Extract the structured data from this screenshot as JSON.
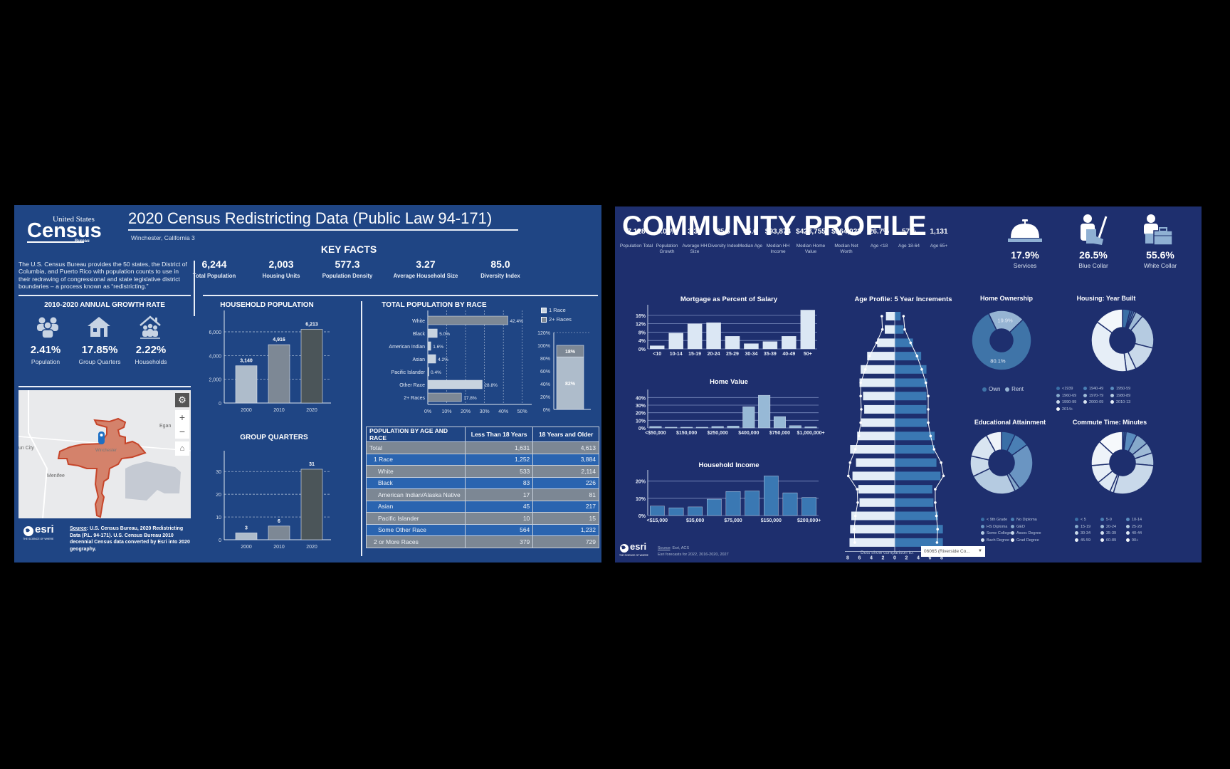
{
  "left": {
    "logo": {
      "line1": "United States",
      "line2": "Census",
      "line3": "Bureau"
    },
    "title": "2020 Census Redistricting Data (Public Law 94-171)",
    "subtitle": "Winchester, California 3",
    "intro": "The U.S. Census Bureau provides the 50 states, the District of Columbia, and Puerto Rico with population counts to use in their redrawing of congressional and state legislative district boundaries – a process known as “redistricting.”",
    "growth": {
      "title": "2010-2020 ANNUAL GROWTH RATE",
      "items": [
        {
          "icon": "people-icon",
          "value": "2.41%",
          "label": "Population"
        },
        {
          "icon": "house-icon",
          "value": "17.85%",
          "label": "Group Quarters"
        },
        {
          "icon": "household-icon",
          "value": "2.22%",
          "label": "Households"
        }
      ]
    },
    "map": {
      "places": [
        "Egan",
        "un City",
        "Menifee",
        "Winchester"
      ],
      "zoom_in": "+",
      "zoom_out": "−"
    },
    "source": {
      "label": "Source",
      "text": ": U.S. Census Bureau, 2020 Redistricting Data (P.L. 94-171). U.S. Census Bureau 2010 decennial Census data converted by Esri into 2020 geography."
    },
    "esri": {
      "name": "esri",
      "tagline": "THE SCIENCE OF WHERE"
    },
    "key_facts": {
      "title": "KEY FACTS",
      "items": [
        {
          "value": "6,244",
          "label": "Total Population"
        },
        {
          "value": "2,003",
          "label": "Housing Units"
        },
        {
          "value": "577.3",
          "label": "Population Density"
        },
        {
          "value": "3.27",
          "label": "Average Household Size"
        },
        {
          "value": "85.0",
          "label": "Diversity Index"
        }
      ]
    },
    "household_population": {
      "title": "HOUSEHOLD POPULATION"
    },
    "group_quarters": {
      "title": "GROUP QUARTERS"
    },
    "race": {
      "title": "TOTAL POPULATION BY RACE",
      "legend": [
        "1 Race",
        "2+ Races"
      ]
    },
    "table": {
      "headers": [
        "POPULATION BY AGE AND RACE",
        "Less Than 18 Years",
        "18 Years and Older"
      ],
      "rows": [
        {
          "label": "Total",
          "a": "1,631",
          "b": "4,613",
          "indent": 0,
          "style": "gray"
        },
        {
          "label": "1 Race",
          "a": "1,252",
          "b": "3,884",
          "indent": 1,
          "style": "blue"
        },
        {
          "label": "White",
          "a": "533",
          "b": "2,114",
          "indent": 2,
          "style": "gray"
        },
        {
          "label": "Black",
          "a": "83",
          "b": "226",
          "indent": 2,
          "style": "blue"
        },
        {
          "label": "American Indian/Alaska Native",
          "a": "17",
          "b": "81",
          "indent": 2,
          "style": "gray"
        },
        {
          "label": "Asian",
          "a": "45",
          "b": "217",
          "indent": 2,
          "style": "blue"
        },
        {
          "label": "Pacific Islander",
          "a": "10",
          "b": "15",
          "indent": 2,
          "style": "gray"
        },
        {
          "label": "Some Other Race",
          "a": "564",
          "b": "1,232",
          "indent": 2,
          "style": "blue"
        },
        {
          "label": "2 or More Races",
          "a": "379",
          "b": "729",
          "indent": 1,
          "style": "gray"
        }
      ]
    }
  },
  "right": {
    "title": "COMMUNITY PROFILE",
    "stats": [
      {
        "value": "7,128",
        "label": "Population Total"
      },
      {
        "value": "6.06%",
        "label": "Population Growth"
      },
      {
        "value": "3.30",
        "label": "Average HH Size"
      },
      {
        "value": "85.5",
        "label": "Diversity Index"
      },
      {
        "value": "35.6",
        "label": "Median Age"
      },
      {
        "value": "$93,874",
        "label": "Median HH Income"
      },
      {
        "value": "$428,755",
        "label": "Median Home Value"
      },
      {
        "value": "$264,022",
        "label": "Median Net Worth"
      },
      {
        "value": "26.7%",
        "label": "Age <18"
      },
      {
        "value": "57%",
        "label": "Age 18-64"
      },
      {
        "value": "1,131",
        "label": "Age 65+"
      }
    ],
    "employment": [
      {
        "icon": "service-bell-icon",
        "value": "17.9%",
        "label": "Services"
      },
      {
        "icon": "blue-collar-worker-icon",
        "value": "26.5%",
        "label": "Blue Collar"
      },
      {
        "icon": "white-collar-worker-icon",
        "value": "55.6%",
        "label": "White Collar"
      }
    ],
    "age_profile": {
      "title": "Age Profile: 5 Year Increments",
      "axis": [
        "8",
        "6",
        "4",
        "2",
        "0",
        "2",
        "4",
        "6",
        "8"
      ]
    },
    "comparison": {
      "label": "Dots show comparison to:",
      "selected": "06065 (Riverside Co..."
    },
    "home_ownership": {
      "title": "Home Ownership",
      "legend": [
        "Own",
        "Rent"
      ],
      "labels": [
        "80.1%",
        "19.9%"
      ]
    },
    "housing_year": {
      "title": "Housing: Year Built",
      "legend": [
        "<1939",
        "1940-49",
        "1950-59",
        "1960-69",
        "1970-79",
        "1980-89",
        "1990-99",
        "2000-09",
        "2010-13",
        "2014+"
      ]
    },
    "education": {
      "title": "Educational Attainment",
      "legend": [
        "< 9th Grade",
        "No Diploma",
        "HS Diploma",
        "GED",
        "Some College",
        "Assoc Degree",
        "Bach Degree",
        "Grad Degree"
      ]
    },
    "commute": {
      "title": "Commute Time: Minutes",
      "legend": [
        "< 5",
        "5-9",
        "10-14",
        "15-19",
        "20-24",
        "25-29",
        "30-34",
        "35-39",
        "40-44",
        "45-59",
        "60-89",
        "90+"
      ]
    },
    "source": {
      "label": "Source",
      "text": ": Esri, ACS",
      "note": "Esri forecasts for 2022, 2016-2020, 2027"
    },
    "esri": {
      "name": "esri",
      "tagline": "THE SCIENCE OF WHERE"
    }
  },
  "chart_data": [
    {
      "id": "household_population",
      "type": "bar",
      "title": "HOUSEHOLD POPULATION",
      "categories": [
        "2000",
        "2010",
        "2020"
      ],
      "values": [
        3140,
        4916,
        6213
      ],
      "labels": [
        "3,140",
        "4,916",
        "6,213"
      ],
      "yticks": [
        "0",
        "2,000",
        "4,000",
        "6,000"
      ],
      "ylim": [
        0,
        7200
      ],
      "colors": [
        "#aebccb",
        "#7d8895",
        "#4b5559"
      ]
    },
    {
      "id": "group_quarters",
      "type": "bar",
      "title": "GROUP QUARTERS",
      "categories": [
        "2000",
        "2010",
        "2020"
      ],
      "values": [
        3,
        6,
        31
      ],
      "labels": [
        "3",
        "6",
        "31"
      ],
      "yticks": [
        "0",
        "10",
        "20",
        "30"
      ],
      "ylim": [
        0,
        36
      ],
      "colors": [
        "#aebccb",
        "#7d8895",
        "#4b5559"
      ]
    },
    {
      "id": "race",
      "type": "bar",
      "orientation": "horizontal",
      "title": "TOTAL POPULATION BY RACE",
      "categories": [
        "White",
        "Black",
        "American Indian",
        "Asian",
        "Pacific Islander",
        "Other Race",
        "2+ Races"
      ],
      "values": [
        42.4,
        5.0,
        1.6,
        4.2,
        0.4,
        28.8,
        17.8
      ],
      "labels": [
        "42.4%",
        "5.0%",
        "1.6%",
        "4.2%",
        "0.4%",
        "28.8%",
        "17.8%"
      ],
      "xticks": [
        "0%",
        "10%",
        "20%",
        "30%",
        "40%",
        "50%"
      ],
      "xlim": [
        0,
        52
      ],
      "colors": [
        "#7d8895",
        "#c8d3df",
        "#c8d3df",
        "#c8d3df",
        "#c8d3df",
        "#c8d3df",
        "#7d8895"
      ]
    },
    {
      "id": "race_stacked",
      "type": "bar",
      "stacked": true,
      "series": [
        {
          "name": "1 Race",
          "values": [
            82
          ],
          "label": "82%"
        },
        {
          "name": "2+ Races",
          "values": [
            18
          ],
          "label": "18%"
        }
      ],
      "yticks": [
        "0%",
        "20%",
        "40%",
        "60%",
        "80%",
        "100%",
        "120%"
      ],
      "ylim": [
        0,
        120
      ]
    },
    {
      "id": "mortgage",
      "type": "bar",
      "title": "Mortgage as Percent of Salary",
      "categories": [
        "<10",
        "10-14",
        "15-19",
        "20-24",
        "25-29",
        "30-34",
        "35-39",
        "40-49",
        "50+"
      ],
      "values": [
        1.5,
        7.5,
        12,
        12.5,
        6,
        2.5,
        3.5,
        6,
        18.5
      ],
      "yticks": [
        "0%",
        "4%",
        "8%",
        "12%",
        "16%"
      ],
      "ylim": [
        0,
        19
      ]
    },
    {
      "id": "home_value",
      "type": "bar",
      "title": "Home Value",
      "categories": [
        "<$50,000",
        "",
        "$150,000",
        "",
        "$250,000",
        "",
        "$400,000",
        "",
        "$750,000",
        "",
        "$1,000,000+"
      ],
      "values": [
        2,
        1,
        1,
        1,
        2,
        2.5,
        28,
        43,
        15,
        3,
        1.5
      ],
      "yticks": [
        "0%",
        "10%",
        "20%",
        "30%",
        "40%"
      ],
      "ylim": [
        0,
        45
      ]
    },
    {
      "id": "household_income",
      "type": "bar",
      "title": "Household Income",
      "categories": [
        "<$15,000",
        "",
        "$35,000",
        "",
        "$75,000",
        "",
        "$150,000",
        "",
        "$200,000+"
      ],
      "values": [
        5.5,
        4.5,
        5,
        9.5,
        14,
        14.3,
        23,
        13.2,
        10.5
      ],
      "yticks": [
        "0%",
        "10%",
        "20%"
      ],
      "ylim": [
        0,
        24
      ]
    },
    {
      "id": "age_profile",
      "type": "bar",
      "orientation": "horizontal",
      "title": "Age Profile: 5 Year Increments",
      "categories": [
        "85+",
        "80-84",
        "75-79",
        "70-74",
        "65-69",
        "60-64",
        "55-59",
        "50-54",
        "45-49",
        "40-44",
        "35-39",
        "30-34",
        "25-29",
        "20-24",
        "15-19",
        "10-14",
        "5-9",
        "0-4"
      ],
      "series": [
        {
          "name": "Left",
          "values": [
            1.5,
            1.7,
            3.0,
            4.7,
            5.8,
            6.0,
            5.4,
            5.2,
            5.7,
            6.4,
            7.6,
            6.6,
            7.2,
            6.2,
            6.0,
            7.4,
            7.6,
            7.7
          ]
        },
        {
          "name": "Right",
          "values": [
            1.0,
            1.5,
            3.1,
            4.5,
            5.4,
            5.5,
            5.4,
            5.4,
            5.5,
            6.8,
            6.8,
            7.1,
            7.8,
            6.4,
            6.6,
            7.4,
            8.2,
            8.2
          ]
        },
        {
          "name": "Comparison left",
          "values": [
            2.2,
            2.1,
            3.1,
            4.3,
            5.0,
            5.8,
            5.8,
            5.7,
            5.8,
            6.1,
            6.7,
            7.6,
            7.9,
            6.4,
            6.3,
            6.7,
            6.9,
            6.8
          ]
        },
        {
          "name": "Comparison right",
          "values": [
            1.5,
            1.7,
            2.7,
            3.8,
            4.6,
            5.3,
            5.7,
            5.7,
            5.7,
            6.1,
            6.7,
            7.9,
            8.3,
            6.9,
            6.9,
            7.1,
            7.3,
            7.2
          ]
        }
      ],
      "xticks": [
        "8",
        "6",
        "4",
        "2",
        "0",
        "2",
        "4",
        "6",
        "8"
      ],
      "xlim": [
        -8,
        8
      ]
    },
    {
      "id": "home_ownership",
      "type": "pie",
      "donut": true,
      "categories": [
        "Own",
        "Rent"
      ],
      "values": [
        80.1,
        19.9
      ],
      "colors": [
        "#3f74a8",
        "#96b4d3"
      ]
    },
    {
      "id": "housing_year_built",
      "type": "pie",
      "donut": true,
      "categories": [
        "<1939",
        "1940-49",
        "1950-59",
        "1960-69",
        "1970-79",
        "1980-89",
        "1990-99",
        "2000-09",
        "2010-13",
        "2014+"
      ],
      "values": [
        4,
        1,
        1,
        1,
        4,
        18,
        14,
        5,
        37,
        15
      ],
      "colors": [
        "#3a6fa6",
        "#4a7fb4",
        "#5a8cbe",
        "#86a9cb",
        "#9ebad6",
        "#b5cbe1",
        "#c9d9ea",
        "#d9e5f1",
        "#e6eef7",
        "#f3f7fb"
      ]
    },
    {
      "id": "educational_attainment",
      "type": "pie",
      "donut": true,
      "categories": [
        "< 9th Grade",
        "No Diploma",
        "HS Diploma",
        "GED",
        "Some College",
        "Assoc Degree",
        "Bach Degree",
        "Grad Degree"
      ],
      "values": [
        8,
        9,
        28,
        3,
        28,
        12,
        15,
        9
      ],
      "colors": [
        "#3a6fa6",
        "#4a7fb4",
        "#6a95c2",
        "#86a9cb",
        "#b5cbe1",
        "#c9d9ea",
        "#d9e5f1",
        "#eef3f9"
      ]
    },
    {
      "id": "commute_time",
      "type": "pie",
      "donut": true,
      "categories": [
        "< 5",
        "5-9",
        "10-14",
        "15-19",
        "20-24",
        "25-29",
        "30-34",
        "35-39",
        "40-44",
        "45-59",
        "60-89",
        "90+"
      ],
      "values": [
        1,
        1,
        6,
        7,
        6,
        7,
        30,
        2,
        8,
        10,
        14,
        14
      ],
      "colors": [
        "#3a6fa6",
        "#4a7fb4",
        "#5a8cbe",
        "#86a9cb",
        "#9ebad6",
        "#b5cbe1",
        "#c9d9ea",
        "#d3e0ee",
        "#dde8f3",
        "#e6eef7",
        "#eef3f9",
        "#f6f9fc"
      ]
    }
  ]
}
